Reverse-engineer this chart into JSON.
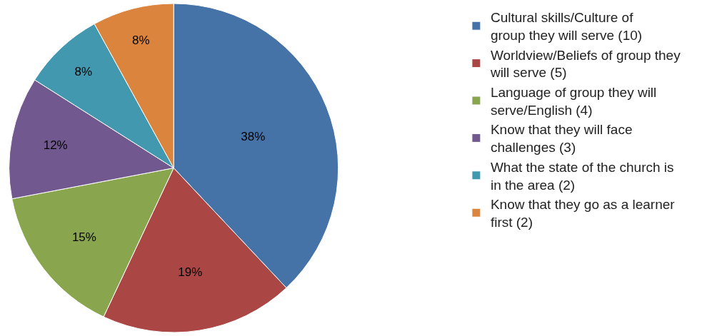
{
  "chart_data": {
    "type": "pie",
    "categories": [
      "Cultural skills/Culture of group they will serve (10)",
      "Worldview/Beliefs of group they will serve (5)",
      "Language of group they will serve/English (4)",
      "Know that they will face challenges (3)",
      "What the state of the church is in the area (2)",
      "Know that they go as a learner first (2)"
    ],
    "values": [
      38,
      19,
      15,
      12,
      8,
      8
    ],
    "value_labels": [
      "38%",
      "19%",
      "15%",
      "12%",
      "8%",
      "8%"
    ],
    "colors": [
      "#4572a7",
      "#aa4643",
      "#89a54e",
      "#71588f",
      "#4198af",
      "#db843d"
    ],
    "legend": "right"
  }
}
